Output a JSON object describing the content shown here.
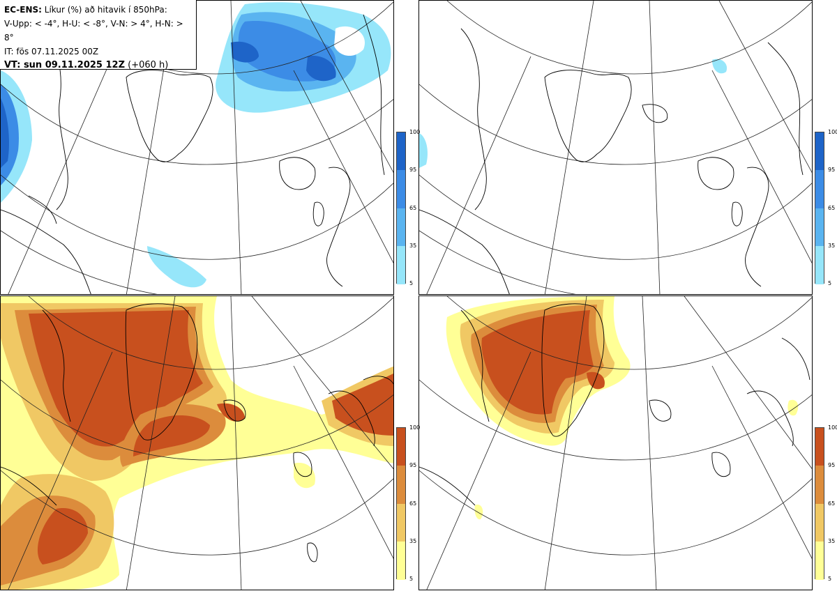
{
  "legend": {
    "title_bold": "EC-ENS:",
    "title_rest": " Líkur (%) að hitavik í 850hPa:",
    "thresholds": "V-Upp: < -4°, H-U: < -8°, V-N: > 4°, H-N: > 8°",
    "init_time": "IT: fös 07.11.2025 00Z",
    "valid_bold": "VT: sun 09.11.2025 12Z",
    "valid_rest": " (+060 h)"
  },
  "panels": [
    {
      "id": "tl",
      "name": "V-Upp",
      "description_name": "cold-anomaly-below-minus-4"
    },
    {
      "id": "tr",
      "name": "H-U",
      "description_name": "cold-anomaly-below-minus-8"
    },
    {
      "id": "bl",
      "name": "V-N",
      "description_name": "warm-anomaly-above-4"
    },
    {
      "id": "br",
      "name": "H-N",
      "description_name": "warm-anomaly-above-8"
    }
  ],
  "colorbars": {
    "cold": {
      "ticks": [
        "100",
        "95",
        "65",
        "35",
        "5"
      ],
      "colors": [
        "#1e64c8",
        "#3c8ce6",
        "#5ab4f0",
        "#96e6fa"
      ]
    },
    "warm": {
      "ticks": [
        "100",
        "95",
        "65",
        "35",
        "5"
      ],
      "colors": [
        "#c8501e",
        "#dc8c3c",
        "#f0c864",
        "#ffff96"
      ]
    }
  }
}
